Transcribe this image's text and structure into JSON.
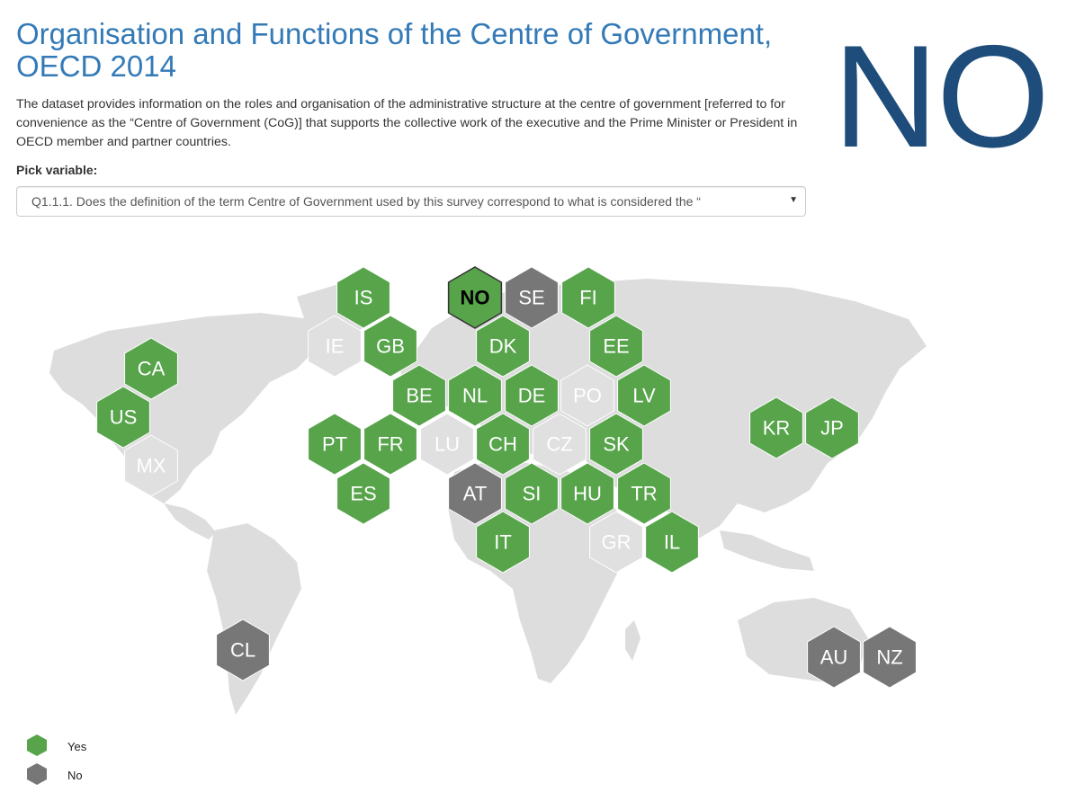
{
  "header": {
    "title": "Organisation and Functions of the Centre of Government, OECD 2014",
    "description": "The dataset provides information on the roles and organisation of the administrative structure at the centre of government [referred to for convenience as the “Centre of Government (CoG)] that supports the collective work of the executive and the Prime Minister or President in OECD member and partner countries.",
    "selected_country": "NO"
  },
  "controls": {
    "pick_label": "Pick variable:",
    "selected_variable": "Q1.1.1. Does the definition of the term Centre of Government used by this survey correspond to what is considered the “"
  },
  "colors": {
    "yes": "#57a44b",
    "no": "#777777",
    "missing": "#e0e0e0",
    "continents": "#dddddd",
    "title": "#337ab7",
    "big_code": "#1e4d7b"
  },
  "legend": [
    {
      "label": "Yes",
      "status": "yes"
    },
    {
      "label": "No",
      "status": "no"
    }
  ],
  "countries": [
    {
      "code": "IS",
      "status": "yes"
    },
    {
      "code": "NO",
      "status": "yes",
      "selected": true
    },
    {
      "code": "SE",
      "status": "no"
    },
    {
      "code": "FI",
      "status": "yes"
    },
    {
      "code": "IE",
      "status": "missing"
    },
    {
      "code": "GB",
      "status": "yes"
    },
    {
      "code": "DK",
      "status": "yes"
    },
    {
      "code": "EE",
      "status": "yes"
    },
    {
      "code": "CA",
      "status": "yes"
    },
    {
      "code": "BE",
      "status": "yes"
    },
    {
      "code": "NL",
      "status": "yes"
    },
    {
      "code": "DE",
      "status": "yes"
    },
    {
      "code": "PO",
      "status": "missing"
    },
    {
      "code": "LV",
      "status": "yes"
    },
    {
      "code": "US",
      "status": "yes"
    },
    {
      "code": "KR",
      "status": "yes"
    },
    {
      "code": "JP",
      "status": "yes"
    },
    {
      "code": "PT",
      "status": "yes"
    },
    {
      "code": "FR",
      "status": "yes"
    },
    {
      "code": "LU",
      "status": "missing"
    },
    {
      "code": "CH",
      "status": "yes"
    },
    {
      "code": "CZ",
      "status": "missing"
    },
    {
      "code": "SK",
      "status": "yes"
    },
    {
      "code": "MX",
      "status": "missing"
    },
    {
      "code": "ES",
      "status": "yes"
    },
    {
      "code": "AT",
      "status": "no"
    },
    {
      "code": "SI",
      "status": "yes"
    },
    {
      "code": "HU",
      "status": "yes"
    },
    {
      "code": "TR",
      "status": "yes"
    },
    {
      "code": "IT",
      "status": "yes"
    },
    {
      "code": "GR",
      "status": "missing"
    },
    {
      "code": "IL",
      "status": "yes"
    },
    {
      "code": "CL",
      "status": "no"
    },
    {
      "code": "AU",
      "status": "no"
    },
    {
      "code": "NZ",
      "status": "no"
    }
  ]
}
